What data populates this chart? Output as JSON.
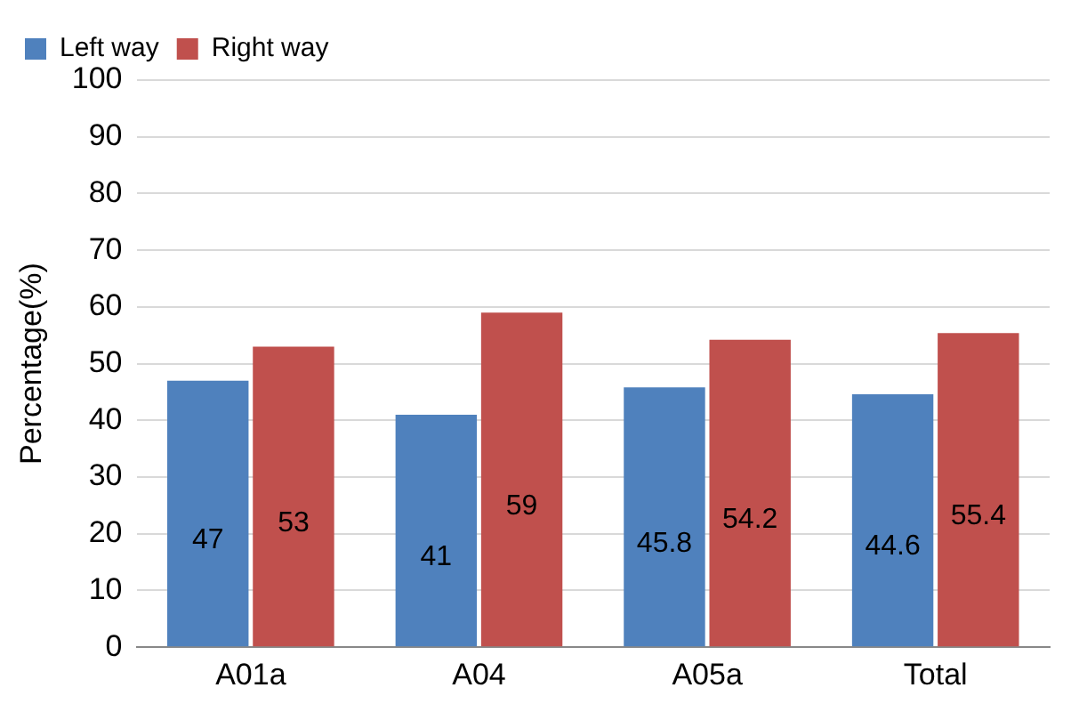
{
  "chart_data": {
    "type": "bar",
    "ylabel": "Percentage(%)",
    "categories": [
      "A01a",
      "A04",
      "A05a",
      "Total"
    ],
    "series": [
      {
        "name": "Left way",
        "color": "#4f81bd",
        "values": [
          47,
          41,
          45.8,
          44.6
        ]
      },
      {
        "name": "Right way",
        "color": "#c0504d",
        "values": [
          53,
          59,
          54.2,
          55.4
        ]
      }
    ],
    "ylim": [
      0,
      100
    ],
    "yticks": [
      0,
      10,
      20,
      30,
      40,
      50,
      60,
      70,
      80,
      90,
      100
    ],
    "grid": "y",
    "legend": "top left",
    "data_labels": true
  }
}
